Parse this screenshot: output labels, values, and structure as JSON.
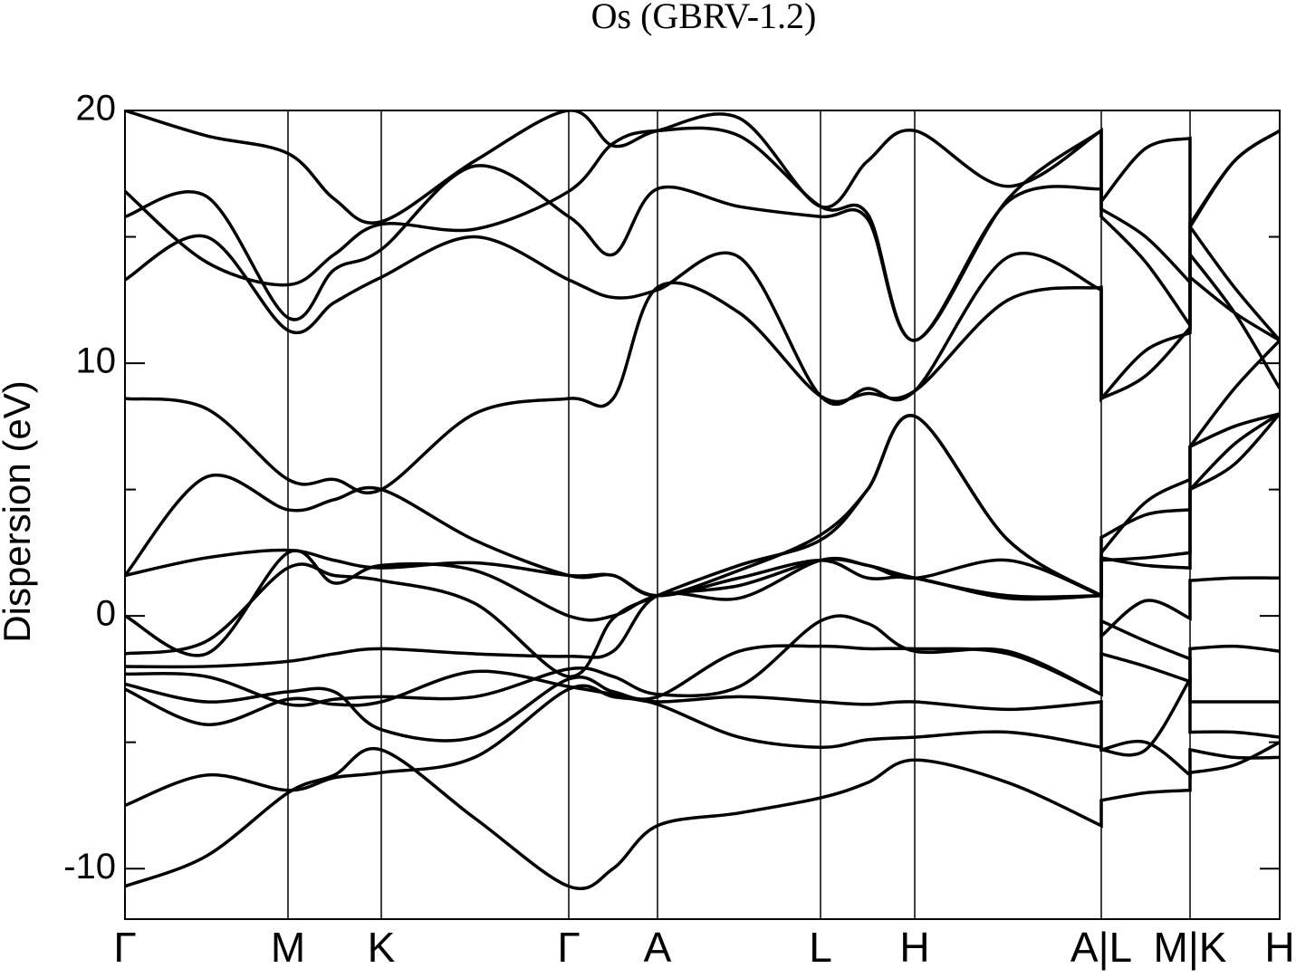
{
  "chart_data": {
    "type": "line",
    "title": "Os (GBRV-1.2)",
    "y_label": "Dispersion (eV)",
    "color": "#000000",
    "grid": true,
    "xlim": [
      0,
      1275
    ],
    "ylim": [
      -12,
      20
    ],
    "yticks": [
      -10,
      0,
      10,
      20
    ],
    "yminor_ticks": [
      -5,
      5,
      15
    ],
    "xticks": [
      {
        "value": 0,
        "label": "Γ"
      },
      {
        "value": 180,
        "label": "M"
      },
      {
        "value": 283,
        "label": "K"
      },
      {
        "value": 490,
        "label": "Γ"
      },
      {
        "value": 588,
        "label": "A"
      },
      {
        "value": 768,
        "label": "L"
      },
      {
        "value": 872,
        "label": "H"
      },
      {
        "value": 1078,
        "label": "A|L"
      },
      {
        "value": 1176,
        "label": "M|K"
      },
      {
        "value": 1275,
        "label": "H"
      }
    ],
    "x": [
      0,
      90,
      180,
      231,
      283,
      386,
      490,
      539,
      588,
      678,
      768,
      820,
      872,
      975,
      1078,
      1078,
      1127,
      1176,
      1176,
      1225,
      1275
    ],
    "series": [
      {
        "values": [
          -10.7,
          -9.5,
          -7.0,
          -6.3,
          -5.3,
          -8.0,
          -10.7,
          -10.0,
          -8.3,
          -7.8,
          -7.2,
          -6.6,
          -5.7,
          -6.6,
          -8.3,
          -7.3,
          -7.0,
          -6.9,
          -6.2,
          -5.9,
          -5.0
        ]
      },
      {
        "values": [
          -7.5,
          -6.3,
          -6.9,
          -6.4,
          -6.2,
          -5.6,
          -2.9,
          -3.2,
          -3.5,
          -4.8,
          -5.2,
          -4.9,
          -4.8,
          -4.6,
          -5.2,
          -5.3,
          -5.0,
          -6.3,
          -5.3,
          -5.6,
          -5.6
        ]
      },
      {
        "values": [
          -2.9,
          -4.3,
          -3.3,
          -3.5,
          -3.4,
          -2.2,
          -2.8,
          -3.1,
          -3.4,
          -3.2,
          -3.4,
          -3.5,
          -3.4,
          -3.7,
          -3.4,
          -5.3,
          -5.3,
          -2.5,
          -4.6,
          -4.6,
          -4.8
        ]
      },
      {
        "values": [
          -2.7,
          -3.4,
          -3.0,
          -3.0,
          -4.5,
          -4.8,
          -2.5,
          -3.0,
          -3.2,
          -1.4,
          -1.2,
          -1.3,
          -1.3,
          -1.5,
          -3.1,
          -0.2,
          -1.0,
          -1.7,
          -3.4,
          -3.4,
          -3.4
        ]
      },
      {
        "values": [
          -2.3,
          -2.4,
          -3.5,
          -3.3,
          -3.2,
          -3.2,
          -2.1,
          -2.4,
          -3.1,
          -2.8,
          -0.2,
          -0.3,
          -1.4,
          -1.4,
          -3.1,
          -1.5,
          -2.0,
          -2.6,
          -1.3,
          -1.2,
          -1.4
        ]
      },
      {
        "values": [
          -2.0,
          -2.0,
          -1.8,
          -1.5,
          -1.3,
          -1.5,
          -1.6,
          -1.4,
          0.8,
          0.7,
          2.2,
          2.0,
          1.5,
          2.2,
          0.8,
          -0.8,
          0.6,
          -0.1,
          1.4,
          1.5,
          1.5
        ]
      },
      {
        "values": [
          -1.5,
          -1.0,
          1.9,
          1.6,
          1.4,
          0.5,
          -2.4,
          -0.1,
          0.8,
          2.0,
          3.0,
          5.0,
          7.9,
          3.0,
          0.8,
          2.2,
          2.3,
          2.5,
          5.0,
          6.0,
          8.0
        ]
      },
      {
        "values": [
          0,
          -1.5,
          2.5,
          1.3,
          2.0,
          1.8,
          0,
          0,
          0.8,
          1.2,
          2.2,
          2.0,
          1.5,
          0.8,
          0.8,
          2.3,
          2.0,
          1.9,
          6.7,
          7.5,
          8.0
        ]
      },
      {
        "values": [
          1.6,
          2.3,
          2.6,
          2.2,
          1.9,
          2.1,
          1.6,
          1.6,
          0.8,
          1.5,
          2.2,
          1.5,
          1.5,
          0.7,
          0.8,
          3.1,
          4.0,
          4.2,
          5.0,
          6.8,
          8.0
        ]
      },
      {
        "values": [
          1.6,
          5.5,
          4.2,
          4.6,
          5.0,
          3.0,
          1.6,
          1.6,
          0.8,
          1.8,
          3.2,
          5.0,
          7.9,
          3.0,
          0.8,
          2.5,
          4.5,
          5.4,
          6.7,
          9.0,
          10.9
        ]
      },
      {
        "values": [
          8.6,
          8.2,
          5.4,
          5.4,
          5.0,
          8.0,
          8.6,
          8.6,
          13.0,
          12.0,
          8.7,
          8.8,
          8.9,
          12.5,
          13.0,
          8.6,
          9.5,
          11.4,
          15.4,
          13.0,
          10.9
        ]
      },
      {
        "values": [
          13.3,
          15.0,
          11.3,
          12.4,
          13.4,
          15.0,
          13.3,
          12.6,
          12.9,
          14.2,
          8.7,
          9.0,
          8.9,
          14.2,
          12.9,
          8.6,
          10.5,
          11.2,
          14.3,
          12.0,
          9.0
        ]
      },
      {
        "values": [
          15.8,
          16.6,
          11.8,
          13.7,
          14.5,
          17.8,
          15.8,
          14.3,
          16.9,
          16.2,
          15.8,
          15.7,
          10.9,
          16.4,
          16.9,
          15.8,
          14.0,
          11.5,
          13.4,
          12.0,
          10.9
        ]
      },
      {
        "values": [
          16.8,
          14.0,
          13.1,
          14.3,
          15.5,
          15.3,
          16.8,
          18.7,
          19.2,
          19.0,
          16.2,
          15.9,
          10.9,
          16.5,
          19.2,
          16.1,
          15.0,
          13.2,
          15.4,
          18.0,
          19.2
        ]
      },
      {
        "values": [
          20.0,
          19.0,
          18.3,
          16.5,
          15.6,
          18.0,
          20.0,
          18.6,
          19.2,
          19.7,
          16.2,
          18.0,
          19.2,
          17.0,
          19.2,
          16.4,
          18.5,
          18.9,
          15.5,
          18.0,
          19.2
        ]
      }
    ]
  }
}
